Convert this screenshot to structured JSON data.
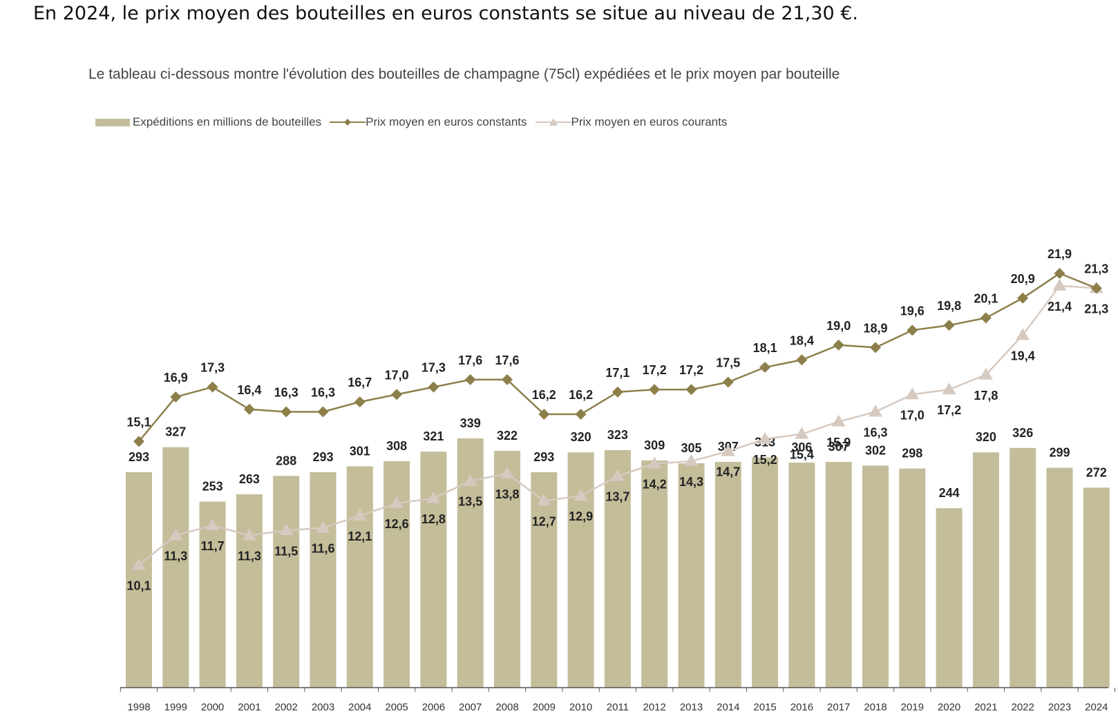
{
  "intro_text": "En 2024, le prix moyen des bouteilles en euros constants se situe au niveau de 21,30 €.",
  "chart_data": {
    "type": "bar",
    "title": "Le tableau ci-dessous montre l'évolution des bouteilles de champagne (75cl) expédiées et le prix moyen par bouteille",
    "categories": [
      "1998",
      "1999",
      "2000",
      "2001",
      "2002",
      "2003",
      "2004",
      "2005",
      "2006",
      "2007",
      "2008",
      "2009",
      "2010",
      "2011",
      "2012",
      "2013",
      "2014",
      "2015",
      "2016",
      "2017",
      "2018",
      "2019",
      "2020",
      "2021",
      "2022",
      "2023",
      "2024"
    ],
    "legend_placement": "top-left",
    "grid": false,
    "colors": {
      "bars": "#c3bd9a",
      "constant": "#8c7f4a",
      "current": "#d6c9c0"
    },
    "series": [
      {
        "name": "Expéditions en millions de bouteilles",
        "type": "bar",
        "values": [
          293,
          327,
          253,
          263,
          288,
          293,
          301,
          308,
          321,
          339,
          322,
          293,
          320,
          323,
          309,
          305,
          307,
          313,
          306,
          307,
          302,
          298,
          244,
          320,
          326,
          299,
          272
        ],
        "labels": [
          "293",
          "327",
          "253",
          "263",
          "288",
          "293",
          "301",
          "308",
          "321",
          "339",
          "322",
          "293",
          "320",
          "323",
          "309",
          "305",
          "307",
          "313",
          "306",
          "307",
          "302",
          "298",
          "244",
          "320",
          "326",
          "299",
          "272"
        ]
      },
      {
        "name": "Prix moyen en euros constants",
        "type": "line",
        "values": [
          15.1,
          16.9,
          17.3,
          16.4,
          16.3,
          16.3,
          16.7,
          17.0,
          17.3,
          17.6,
          17.6,
          16.2,
          16.2,
          17.1,
          17.2,
          17.2,
          17.5,
          18.1,
          18.4,
          19.0,
          18.9,
          19.6,
          19.8,
          20.1,
          20.9,
          21.9,
          21.3
        ],
        "labels": [
          "15,1",
          "16,9",
          "17,3",
          "16,4",
          "16,3",
          "16,3",
          "16,7",
          "17,0",
          "17,3",
          "17,6",
          "17,6",
          "16,2",
          "16,2",
          "17,1",
          "17,2",
          "17,2",
          "17,5",
          "18,1",
          "18,4",
          "19,0",
          "18,9",
          "19,6",
          "19,8",
          "20,1",
          "20,9",
          "21,9",
          "21,3"
        ]
      },
      {
        "name": "Prix moyen en euros courants",
        "type": "line",
        "values": [
          10.1,
          11.3,
          11.7,
          11.3,
          11.5,
          11.6,
          12.1,
          12.6,
          12.8,
          13.5,
          13.8,
          12.7,
          12.9,
          13.7,
          14.2,
          14.3,
          14.7,
          15.2,
          15.4,
          15.9,
          16.3,
          17.0,
          17.2,
          17.8,
          19.4,
          21.4,
          21.3
        ],
        "labels": [
          "10,1",
          "11,3",
          "11,7",
          "11,3",
          "11,5",
          "11,6",
          "12,1",
          "12,6",
          "12,8",
          "13,5",
          "13,8",
          "12,7",
          "12,9",
          "13,7",
          "14,2",
          "14,3",
          "14,7",
          "15,2",
          "15,4",
          "15,9",
          "16,3",
          "17,0",
          "17,2",
          "17,8",
          "19,4",
          "21,4",
          "21,3"
        ]
      }
    ]
  }
}
